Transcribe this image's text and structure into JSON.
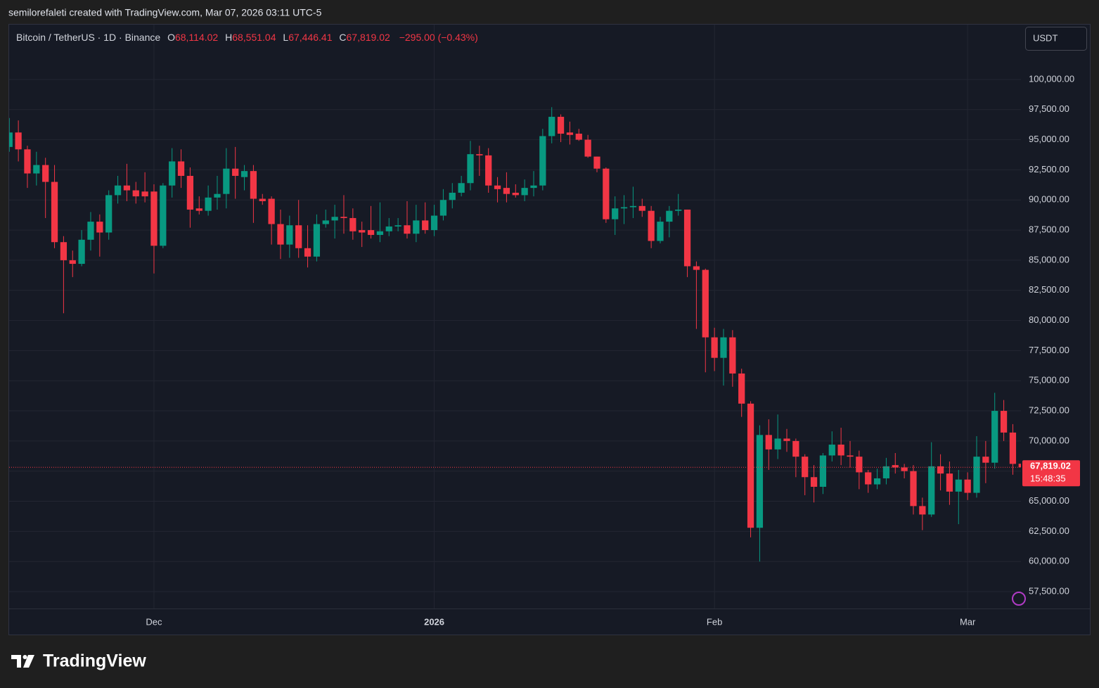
{
  "header": "semilorefaleti created with TradingView.com, Mar 07, 2026 03:11 UTC-5",
  "brand": "TradingView",
  "chart_data": {
    "type": "candlestick",
    "title": "Bitcoin / TetherUS · 1D · Binance",
    "legend": [
      {
        "prefix": "O",
        "text": "68,114.02"
      },
      {
        "prefix": "H",
        "text": "68,551.04"
      },
      {
        "prefix": "L",
        "text": "67,446.41"
      },
      {
        "prefix": "C",
        "text": "67,819.02"
      }
    ],
    "change": "−295.00 (−0.43%)",
    "currency": "USDT",
    "up_color": "#089981",
    "down_color": "#f23645",
    "grid": true,
    "open": [
      94400,
      95600,
      94200,
      92200,
      92900,
      91500,
      86500,
      85000,
      84700,
      86700,
      88200,
      87300,
      90400,
      91200,
      90800,
      90700,
      90700,
      86200,
      91200,
      93200,
      92000,
      89300,
      89100,
      90200,
      90500,
      92600,
      91900,
      92400,
      90100,
      90100,
      88000,
      86300,
      87900,
      86000,
      85300,
      88000,
      88300,
      88600,
      88500,
      87500,
      87500,
      87100,
      87400,
      87800,
      87900,
      87200,
      88300,
      87500,
      88700,
      90000,
      90600,
      91400,
      93800,
      93700,
      91200,
      91000,
      90600,
      90400,
      91000,
      91200,
      95300,
      96900,
      95600,
      95500,
      95000,
      93600,
      92600,
      88400,
      89300,
      89400,
      89500,
      89100,
      86600,
      88200,
      89100,
      89200,
      84500,
      84200,
      78600,
      76900,
      78600,
      75600,
      73100,
      62800,
      70500,
      69300,
      70200,
      70000,
      68700,
      67000,
      66200,
      68800,
      69700,
      68800,
      68700,
      67400,
      66400,
      66900,
      68000,
      67800,
      67500,
      64600,
      63900,
      67900,
      67300,
      65800,
      66800,
      65700,
      68700,
      68200,
      72500,
      70700,
      68114.02
    ],
    "high": [
      96800,
      96600,
      94500,
      94000,
      93500,
      92900,
      87000,
      85800,
      87500,
      89000,
      88800,
      90800,
      92000,
      93000,
      91500,
      92300,
      91300,
      91400,
      94300,
      94200,
      92700,
      90300,
      91200,
      92000,
      94300,
      94400,
      92900,
      92900,
      90500,
      90300,
      89200,
      88700,
      90000,
      87900,
      88800,
      89200,
      89600,
      90400,
      89300,
      88200,
      89500,
      89800,
      88500,
      88500,
      89900,
      89600,
      89800,
      89600,
      90900,
      91400,
      92000,
      94900,
      94500,
      94300,
      91900,
      92300,
      91300,
      91700,
      92400,
      95900,
      97700,
      97100,
      96500,
      95900,
      95400,
      93600,
      92700,
      90300,
      90400,
      91100,
      90100,
      89500,
      88600,
      89500,
      90500,
      89200,
      84900,
      84300,
      79400,
      79300,
      79200,
      76000,
      73300,
      71300,
      71800,
      72200,
      71000,
      70200,
      68900,
      68000,
      69000,
      70800,
      71100,
      70000,
      69200,
      67600,
      67700,
      68600,
      69000,
      68100,
      68000,
      65300,
      69900,
      68900,
      68300,
      67600,
      67400,
      70400,
      70000,
      74000,
      73400,
      71400,
      68551.04
    ],
    "low": [
      94000,
      93200,
      91000,
      91200,
      88500,
      86000,
      80600,
      83600,
      84500,
      85800,
      85300,
      86700,
      89700,
      89900,
      89700,
      89800,
      83900,
      86000,
      90200,
      91000,
      87700,
      88800,
      88700,
      89200,
      89300,
      90100,
      90800,
      88100,
      89600,
      86300,
      85100,
      85200,
      85200,
      84400,
      84900,
      87700,
      86800,
      87200,
      86700,
      86100,
      86800,
      86500,
      87000,
      87400,
      86800,
      86500,
      87200,
      87000,
      88300,
      89300,
      90300,
      90800,
      92000,
      90600,
      89800,
      89800,
      90200,
      89900,
      90300,
      90800,
      94700,
      94800,
      94600,
      94900,
      93500,
      92300,
      88100,
      87100,
      88000,
      88500,
      88600,
      86000,
      86400,
      86900,
      88700,
      83600,
      79300,
      75700,
      75800,
      74600,
      74500,
      72000,
      62000,
      60000,
      67600,
      68500,
      69100,
      67000,
      65500,
      64900,
      65600,
      68300,
      68000,
      67800,
      66000,
      65700,
      66000,
      66400,
      67300,
      66900,
      63900,
      62600,
      63700,
      65900,
      64700,
      63100,
      65100,
      65300,
      66500,
      67700,
      70000,
      67200,
      67446.41
    ],
    "close": [
      95600,
      94200,
      92200,
      92900,
      91500,
      86500,
      85000,
      84700,
      86700,
      88200,
      87300,
      90400,
      91200,
      90800,
      90300,
      90300,
      86200,
      91200,
      93200,
      92000,
      89200,
      89100,
      90200,
      90500,
      92600,
      92000,
      92400,
      90100,
      89900,
      88000,
      86300,
      87900,
      86000,
      85300,
      88000,
      88300,
      88600,
      88500,
      87400,
      87300,
      87100,
      87400,
      87800,
      87900,
      87200,
      88300,
      87500,
      88700,
      90000,
      90600,
      91400,
      93800,
      93700,
      91200,
      90900,
      90500,
      90400,
      91000,
      91200,
      95300,
      96900,
      95500,
      95400,
      95000,
      93600,
      92600,
      88400,
      89300,
      89400,
      89500,
      89100,
      86600,
      88200,
      89100,
      89200,
      84500,
      84200,
      78600,
      76900,
      78600,
      75600,
      73100,
      62800,
      70500,
      69300,
      70200,
      70000,
      68700,
      67000,
      66200,
      68800,
      69700,
      68800,
      68700,
      67400,
      66400,
      66900,
      67900,
      67800,
      67500,
      64600,
      63900,
      67900,
      67300,
      65800,
      66800,
      65700,
      68700,
      68200,
      72500,
      70700,
      68100,
      67819.02
    ],
    "last_price": {
      "value": 67819.02,
      "label": "67,819.02"
    },
    "countdown": "15:48:35",
    "xlim": [
      -0.02,
      111.9
    ],
    "xticks": [
      {
        "value": 16,
        "label": "Dec"
      },
      {
        "value": 47,
        "label": "2026"
      },
      {
        "value": 78,
        "label": "Feb"
      },
      {
        "value": 106,
        "label": "Mar"
      }
    ],
    "ylim": [
      56100,
      104550
    ],
    "yticks": [
      {
        "value": 57500,
        "label": "57,500.00"
      },
      {
        "value": 60000,
        "label": "60,000.00"
      },
      {
        "value": 62500,
        "label": "62,500.00"
      },
      {
        "value": 65000,
        "label": "65,000.00"
      },
      {
        "value": 67500,
        "label": "67,500.00"
      },
      {
        "value": 70000,
        "label": "70,000.00"
      },
      {
        "value": 72500,
        "label": "72,500.00"
      },
      {
        "value": 75000,
        "label": "75,000.00"
      },
      {
        "value": 77500,
        "label": "77,500.00"
      },
      {
        "value": 80000,
        "label": "80,000.00"
      },
      {
        "value": 82500,
        "label": "82,500.00"
      },
      {
        "value": 85000,
        "label": "85,000.00"
      },
      {
        "value": 87500,
        "label": "87,500.00"
      },
      {
        "value": 90000,
        "label": "90,000.00"
      },
      {
        "value": 92500,
        "label": "92,500.00"
      },
      {
        "value": 95000,
        "label": "95,000.00"
      },
      {
        "value": 97500,
        "label": "97,500.00"
      },
      {
        "value": 100000,
        "label": "100,000.00"
      }
    ]
  }
}
